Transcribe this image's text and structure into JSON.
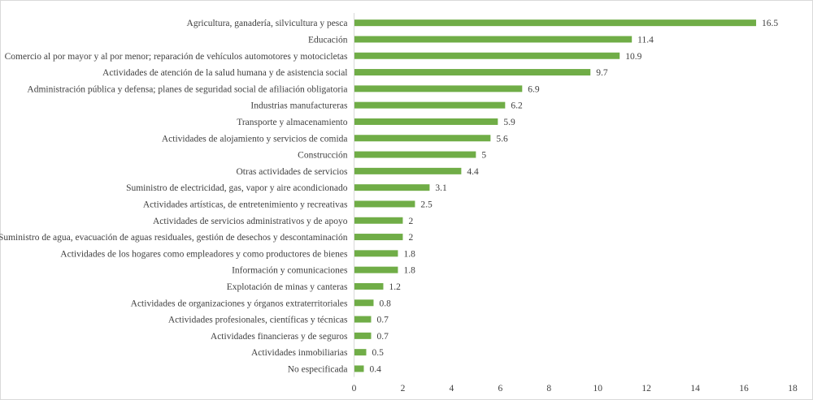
{
  "chart_data": {
    "type": "bar",
    "orientation": "horizontal",
    "title": "",
    "xlabel": "",
    "ylabel": "",
    "xlim": [
      0,
      18
    ],
    "x_ticks": [
      "0",
      "2",
      "4",
      "6",
      "8",
      "10",
      "12",
      "14",
      "16",
      "18"
    ],
    "grid": false,
    "bar_color": "#70ad47",
    "categories": [
      "Agricultura, ganadería, silvicultura y pesca",
      "Educación",
      "Comercio al por mayor y al por menor; reparación de vehículos automotores y motocicletas",
      "Actividades de atención de la salud humana y de asistencia social",
      "Administración pública y defensa; planes de seguridad social de afiliación obligatoria",
      "Industrias manufactureras",
      "Transporte y almacenamiento",
      "Actividades de alojamiento y servicios de comida",
      "Construcción",
      "Otras actividades de servicios",
      "Suministro de electricidad, gas, vapor y aire acondicionado",
      "Actividades artísticas, de entretenimiento y recreativas",
      "Actividades de servicios administrativos y de apoyo",
      "Suministro de agua, evacuación de aguas residuales, gestión de desechos y descontaminación",
      "Actividades de los hogares como empleadores y como productores de bienes",
      "Información y comunicaciones",
      "Explotación de minas y canteras",
      "Actividades de organizaciones y órganos extraterritoriales",
      "Actividades profesionales, científicas y técnicas",
      "Actividades financieras y de seguros",
      "Actividades inmobiliarias",
      "No especificada"
    ],
    "values": [
      16.5,
      11.4,
      10.9,
      9.7,
      6.9,
      6.2,
      5.9,
      5.6,
      5,
      4.4,
      3.1,
      2.5,
      2,
      2,
      1.8,
      1.8,
      1.2,
      0.8,
      0.7,
      0.7,
      0.5,
      0.4
    ],
    "value_labels": [
      "16.5",
      "11.4",
      "10.9",
      "9.7",
      "6.9",
      "6.2",
      "5.9",
      "5.6",
      "5",
      "4.4",
      "3.1",
      "2.5",
      "2",
      "2",
      "1.8",
      "1.8",
      "1.2",
      "0.8",
      "0.7",
      "0.7",
      "0.5",
      "0.4"
    ]
  }
}
